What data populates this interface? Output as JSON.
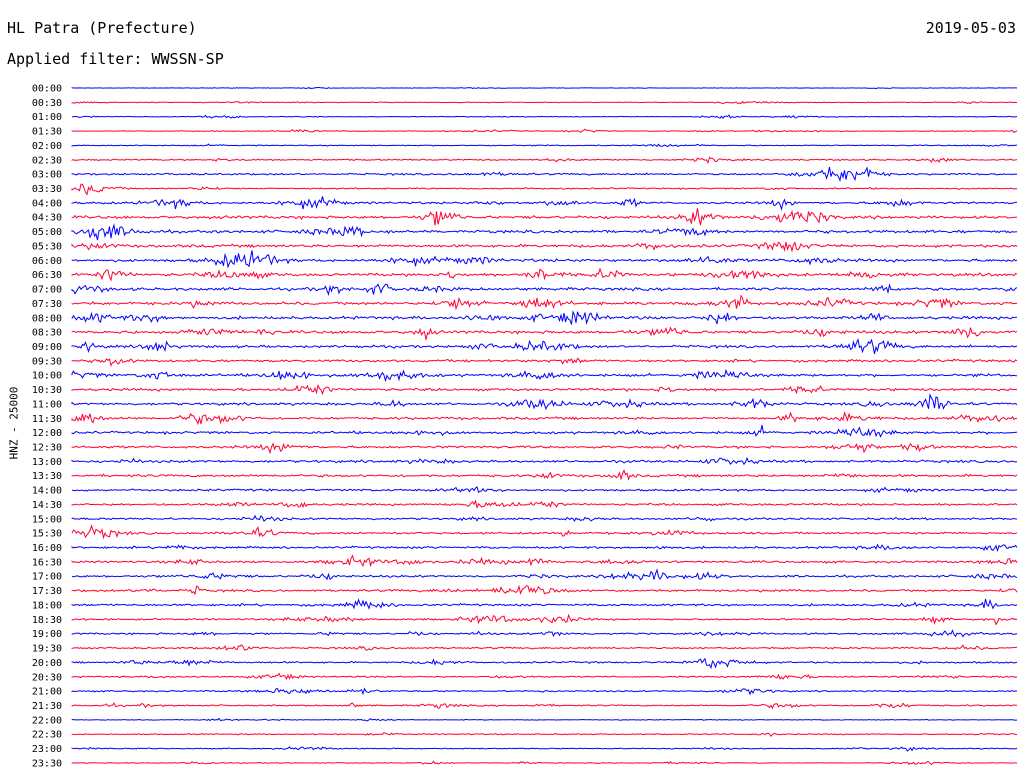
{
  "header": {
    "station": "HL Patra (Prefecture)",
    "filter": "Applied filter: WWSSN-SP",
    "date": "2019-05-03"
  },
  "chart_data": {
    "type": "line",
    "title": "HL Patra (Prefecture)",
    "subtitle": "Applied filter: WWSSN-SP",
    "date": "2019-05-03",
    "ylabel": "HNZ - 25000",
    "grid": false,
    "colors": {
      "even_rows": "#0000ff",
      "odd_rows": "#ff0033"
    },
    "row_labels": [
      "00:00",
      "00:30",
      "01:00",
      "01:30",
      "02:00",
      "02:30",
      "03:00",
      "03:30",
      "04:00",
      "04:30",
      "05:00",
      "05:30",
      "06:00",
      "06:30",
      "07:00",
      "07:30",
      "08:00",
      "08:30",
      "09:00",
      "09:30",
      "10:00",
      "10:30",
      "11:00",
      "11:30",
      "12:00",
      "12:30",
      "13:00",
      "13:30",
      "14:00",
      "14:30",
      "15:00",
      "15:30",
      "16:00",
      "16:30",
      "17:00",
      "17:30",
      "18:00",
      "18:30",
      "19:00",
      "19:30",
      "20:00",
      "20:30",
      "21:00",
      "21:30",
      "22:00",
      "22:30",
      "23:00",
      "23:30"
    ],
    "noise_level": [
      0.5,
      1,
      1,
      1,
      1.5,
      2,
      2.5,
      2,
      3,
      4,
      4,
      4,
      4,
      4,
      4,
      4,
      4,
      4,
      3.5,
      3.5,
      3.5,
      3.5,
      3.5,
      3.5,
      3.5,
      3.5,
      3.5,
      3.5,
      3,
      3,
      3,
      3,
      3,
      3,
      3,
      3,
      3,
      2.5,
      2.5,
      2.5,
      2.5,
      2,
      2,
      2,
      1,
      1.5,
      1.5,
      1
    ]
  }
}
